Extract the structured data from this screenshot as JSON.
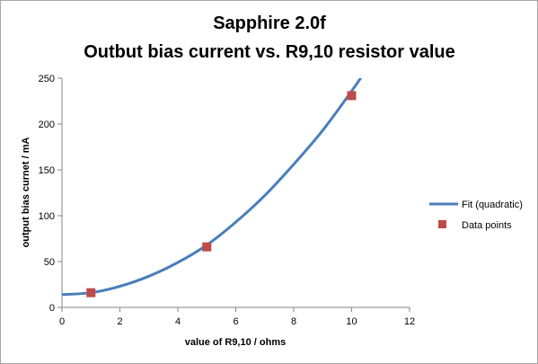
{
  "chart_data": {
    "type": "scatter",
    "title_line1": "Sapphire 2.0f",
    "title_line2": "Outbut bias current vs. R9,10 resistor value",
    "xlabel": "value of R9,10 / ohms",
    "ylabel": "output bias curnet / mA",
    "xlim": [
      0,
      12
    ],
    "ylim": [
      0,
      250
    ],
    "x_ticks": [
      "0",
      "2",
      "4",
      "6",
      "8",
      "10",
      "12"
    ],
    "y_ticks": [
      "0",
      "50",
      "100",
      "150",
      "200",
      "250"
    ],
    "legend_position": "right",
    "series": [
      {
        "name": "Fit (quadratic)",
        "kind": "line",
        "color": "#4a7ebb",
        "x": [
          0,
          1,
          2,
          3,
          4,
          5,
          6,
          7,
          8,
          9,
          10,
          10.5
        ],
        "y": [
          14,
          16,
          23,
          34,
          49,
          68,
          93,
          122,
          156,
          193,
          236,
          259
        ]
      },
      {
        "name": "Data points",
        "kind": "marker",
        "color": "#be4b48",
        "x": [
          1,
          5,
          10
        ],
        "y": [
          16,
          66,
          231
        ]
      }
    ]
  }
}
